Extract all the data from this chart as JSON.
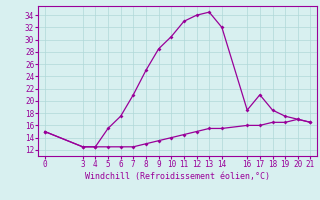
{
  "xlabel": "Windchill (Refroidissement éolien,°C)",
  "x_main": [
    0,
    3,
    4,
    5,
    6,
    7,
    8,
    9,
    10,
    11,
    12,
    13,
    14,
    16,
    17,
    18,
    19,
    20,
    21
  ],
  "y_main": [
    15,
    12.5,
    12.5,
    15.5,
    17.5,
    21,
    25,
    28.5,
    30.5,
    33,
    34,
    34.5,
    32,
    18.5,
    21,
    18.5,
    17.5,
    17,
    16.5
  ],
  "x_lower": [
    0,
    3,
    4,
    5,
    6,
    7,
    8,
    9,
    10,
    11,
    12,
    13,
    14,
    16,
    17,
    18,
    19,
    20,
    21
  ],
  "y_lower": [
    15,
    12.5,
    12.5,
    12.5,
    12.5,
    12.5,
    13,
    13.5,
    14,
    14.5,
    15,
    15.5,
    15.5,
    16,
    16,
    16.5,
    16.5,
    17,
    16.5
  ],
  "line_color": "#990099",
  "bg_color": "#d8f0f0",
  "grid_color": "#b0d8d8",
  "ylim": [
    11,
    35.5
  ],
  "xlim": [
    -0.5,
    21.5
  ],
  "yticks": [
    12,
    14,
    16,
    18,
    20,
    22,
    24,
    26,
    28,
    30,
    32,
    34
  ],
  "xticks": [
    0,
    3,
    4,
    5,
    6,
    7,
    8,
    9,
    10,
    11,
    12,
    13,
    14,
    16,
    17,
    18,
    19,
    20,
    21
  ],
  "tick_fontsize": 5.5,
  "xlabel_fontsize": 6.0
}
